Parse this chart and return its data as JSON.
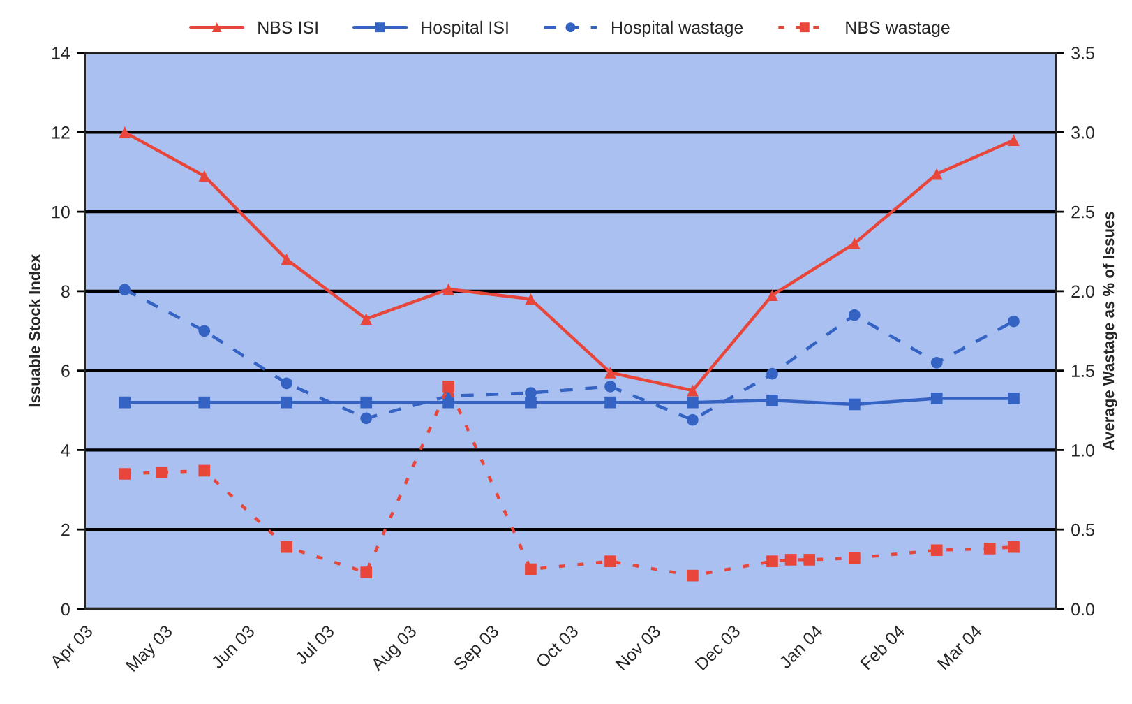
{
  "chart_data": {
    "type": "line",
    "ylabel": "Issuable Stock Index",
    "y2label": "Average Wastage as % of Issues",
    "xlim": [
      "2003-04-01",
      "2004-04-01"
    ],
    "xticks": [
      {
        "value": "2003-04-01",
        "label": "Apr 03"
      },
      {
        "value": "2003-05-01",
        "label": "May 03"
      },
      {
        "value": "2003-06-01",
        "label": "Jun 03"
      },
      {
        "value": "2003-07-01",
        "label": "Jul 03"
      },
      {
        "value": "2003-08-01",
        "label": "Aug 03"
      },
      {
        "value": "2003-09-01",
        "label": "Sep 03"
      },
      {
        "value": "2003-10-01",
        "label": "Oct 03"
      },
      {
        "value": "2003-11-01",
        "label": "Nov 03"
      },
      {
        "value": "2003-12-01",
        "label": "Dec 03"
      },
      {
        "value": "2004-01-01",
        "label": "Jan 04"
      },
      {
        "value": "2004-02-01",
        "label": "Feb 04"
      },
      {
        "value": "2004-03-01",
        "label": "Mar 04"
      }
    ],
    "ylim": [
      0,
      14
    ],
    "yticks": [
      0,
      2,
      4,
      6,
      8,
      10,
      12,
      14
    ],
    "y2lim": [
      0,
      3.5
    ],
    "y2ticks": [
      {
        "value": 0,
        "label": "0.0"
      },
      {
        "value": 0.5,
        "label": "0.5"
      },
      {
        "value": 1,
        "label": "1.0"
      },
      {
        "value": 1.5,
        "label": "1.5"
      },
      {
        "value": 2,
        "label": "2.0"
      },
      {
        "value": 2.5,
        "label": "2.5"
      },
      {
        "value": 3,
        "label": "3.0"
      },
      {
        "value": 3.5,
        "label": "3.5"
      }
    ],
    "grid": "y",
    "legend": "top",
    "series": [
      {
        "name": "NBS ISI",
        "color": "#e8463a",
        "marker": "triangle",
        "line_style": "solid",
        "x": [
          "2003-04-16",
          "2003-05-16",
          "2003-06-16",
          "2003-07-16",
          "2003-08-16",
          "2003-09-16",
          "2003-10-16",
          "2003-11-16",
          "2003-12-16",
          "2004-01-16",
          "2004-02-16",
          "2004-03-16"
        ],
        "values": [
          12.0,
          10.9,
          8.8,
          7.3,
          8.05,
          7.8,
          5.95,
          5.5,
          7.9,
          9.2,
          10.95,
          11.8
        ]
      },
      {
        "name": "Hospital ISI",
        "color": "#3463c4",
        "marker": "square",
        "line_style": "solid",
        "x": [
          "2003-04-16",
          "2003-05-16",
          "2003-06-16",
          "2003-07-16",
          "2003-08-16",
          "2003-09-16",
          "2003-10-16",
          "2003-11-16",
          "2003-12-16",
          "2004-01-16",
          "2004-02-16",
          "2004-03-16"
        ],
        "values": [
          5.2,
          5.2,
          5.2,
          5.2,
          5.2,
          5.2,
          5.2,
          5.2,
          5.25,
          5.15,
          5.3,
          5.3
        ]
      },
      {
        "name": "Hospital wastage",
        "color": "#3463c4",
        "marker": "circle",
        "line_style": "dashed",
        "axis": "y2",
        "x": [
          "2003-04-16",
          "2003-05-16",
          "2003-06-16",
          "2003-07-16",
          "2003-08-16",
          "2003-09-16",
          "2003-10-16",
          "2003-11-16",
          "2003-12-16",
          "2004-01-16",
          "2004-02-16",
          "2004-03-16"
        ],
        "values": [
          2.01,
          1.75,
          1.42,
          1.2,
          1.34,
          1.36,
          1.4,
          1.19,
          1.48,
          1.85,
          1.55,
          1.81
        ]
      },
      {
        "name": "NBS wastage",
        "color": "#e8463a",
        "marker": "square",
        "line_style": "dotted",
        "axis": "y2",
        "x": [
          "2003-04-16",
          "2003-04-30",
          "2003-05-16",
          "2003-06-16",
          "2003-07-16",
          "2003-08-16",
          "2003-09-16",
          "2003-10-16",
          "2003-11-16",
          "2003-12-16",
          "2003-12-23",
          "2003-12-30",
          "2004-01-16",
          "2004-02-16",
          "2004-03-07",
          "2004-03-16"
        ],
        "values": [
          0.85,
          0.86,
          0.87,
          0.39,
          0.23,
          1.4,
          0.25,
          0.3,
          0.21,
          0.3,
          0.31,
          0.31,
          0.32,
          0.37,
          0.38,
          0.39
        ]
      }
    ]
  }
}
